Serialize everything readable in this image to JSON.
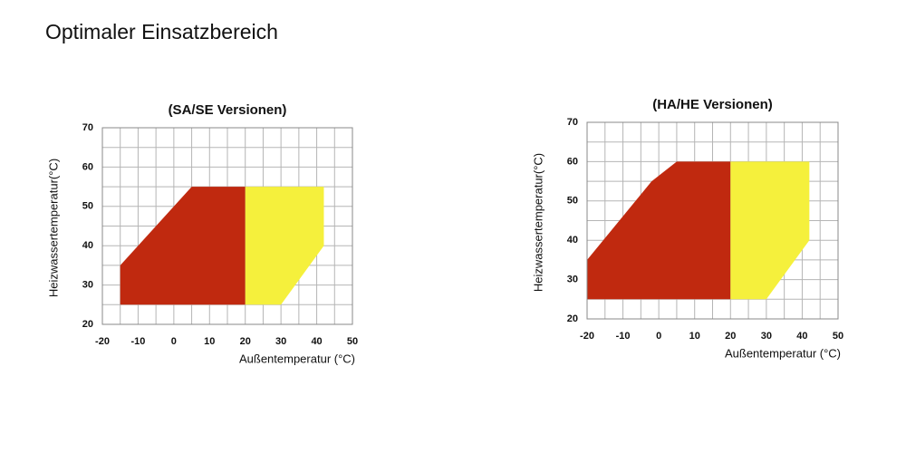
{
  "title": "Optimaler Einsatzbereich",
  "chart_data": [
    {
      "type": "area",
      "title": "(SA/SE Versionen)",
      "x_label": "Außentemperatur (°C)",
      "y_label": "Heizwassertemperatur(°C)",
      "xlim": [
        -20,
        50
      ],
      "xticks": [
        -20,
        -10,
        0,
        10,
        20,
        30,
        40,
        50
      ],
      "ylim": [
        20,
        70
      ],
      "yticks": [
        20,
        30,
        40,
        50,
        60,
        70
      ],
      "grid": true,
      "series": [
        {
          "color": "#c0290f",
          "x": [
            -15,
            -15,
            5,
            20,
            20
          ],
          "values": [
            25,
            35,
            55,
            55,
            25
          ]
        },
        {
          "color": "#f5f03c",
          "x": [
            20,
            20,
            42,
            42,
            30
          ],
          "values": [
            25,
            55,
            55,
            40,
            25
          ]
        }
      ]
    },
    {
      "type": "area",
      "title": "(HA/HE Versionen)",
      "x_label": "Außentemperatur (°C)",
      "y_label": "Heizwassertemperatur(°C)",
      "xlim": [
        -20,
        50
      ],
      "xticks": [
        -20,
        -10,
        0,
        10,
        20,
        30,
        40,
        50
      ],
      "ylim": [
        20,
        70
      ],
      "yticks": [
        20,
        30,
        40,
        50,
        60,
        70
      ],
      "grid": true,
      "series": [
        {
          "color": "#c0290f",
          "x": [
            -20,
            -20,
            -2,
            5,
            20,
            20
          ],
          "values": [
            25,
            35,
            55,
            60,
            60,
            25
          ]
        },
        {
          "color": "#f5f03c",
          "x": [
            20,
            20,
            42,
            42,
            30
          ],
          "values": [
            25,
            60,
            60,
            40,
            25
          ]
        }
      ]
    }
  ]
}
